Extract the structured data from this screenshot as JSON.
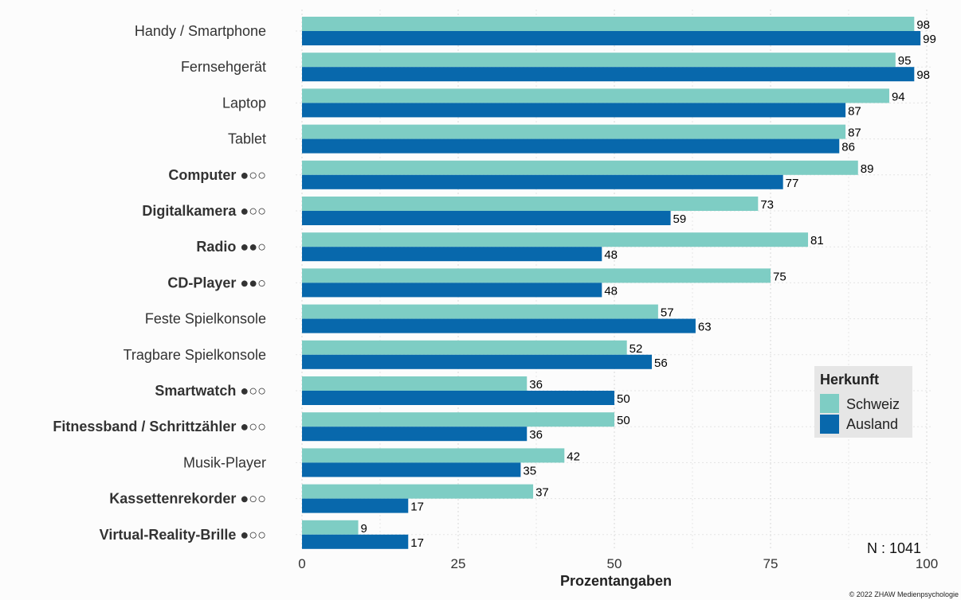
{
  "chart_data": {
    "type": "bar",
    "orientation": "horizontal",
    "title": "",
    "xlabel": "Prozentangaben",
    "ylabel": "",
    "xlim": [
      0,
      100
    ],
    "x_ticks": [
      0,
      25,
      50,
      75,
      100
    ],
    "grid": true,
    "legend_title": "Herkunft",
    "legend_position": "right",
    "categories": [
      "Handy / Smartphone",
      "Fernsehgerät",
      "Laptop",
      "Tablet",
      "Computer ●○○",
      "Digitalkamera ●○○",
      "Radio ●●○",
      "CD-Player ●●○",
      "Feste Spielkonsole",
      "Tragbare Spielkonsole",
      "Smartwatch ●○○",
      "Fitnessband / Schrittzähler ●○○",
      "Musik-Player",
      "Kassettenrekorder ●○○",
      "Virtual-Reality-Brille ●○○"
    ],
    "bold_categories": [
      false,
      false,
      false,
      false,
      true,
      true,
      true,
      true,
      false,
      false,
      true,
      true,
      false,
      true,
      true
    ],
    "series": [
      {
        "name": "Schweiz",
        "color": "#7ecdc4",
        "values": [
          98,
          95,
          94,
          87,
          89,
          73,
          81,
          75,
          57,
          52,
          36,
          50,
          42,
          37,
          9
        ]
      },
      {
        "name": "Ausland",
        "color": "#0868ac",
        "values": [
          99,
          98,
          87,
          86,
          77,
          59,
          48,
          48,
          63,
          56,
          50,
          36,
          35,
          17,
          17
        ]
      }
    ],
    "annotation": "N : 1041",
    "copyright": "© 2022 ZHAW Medienpsychologie"
  }
}
